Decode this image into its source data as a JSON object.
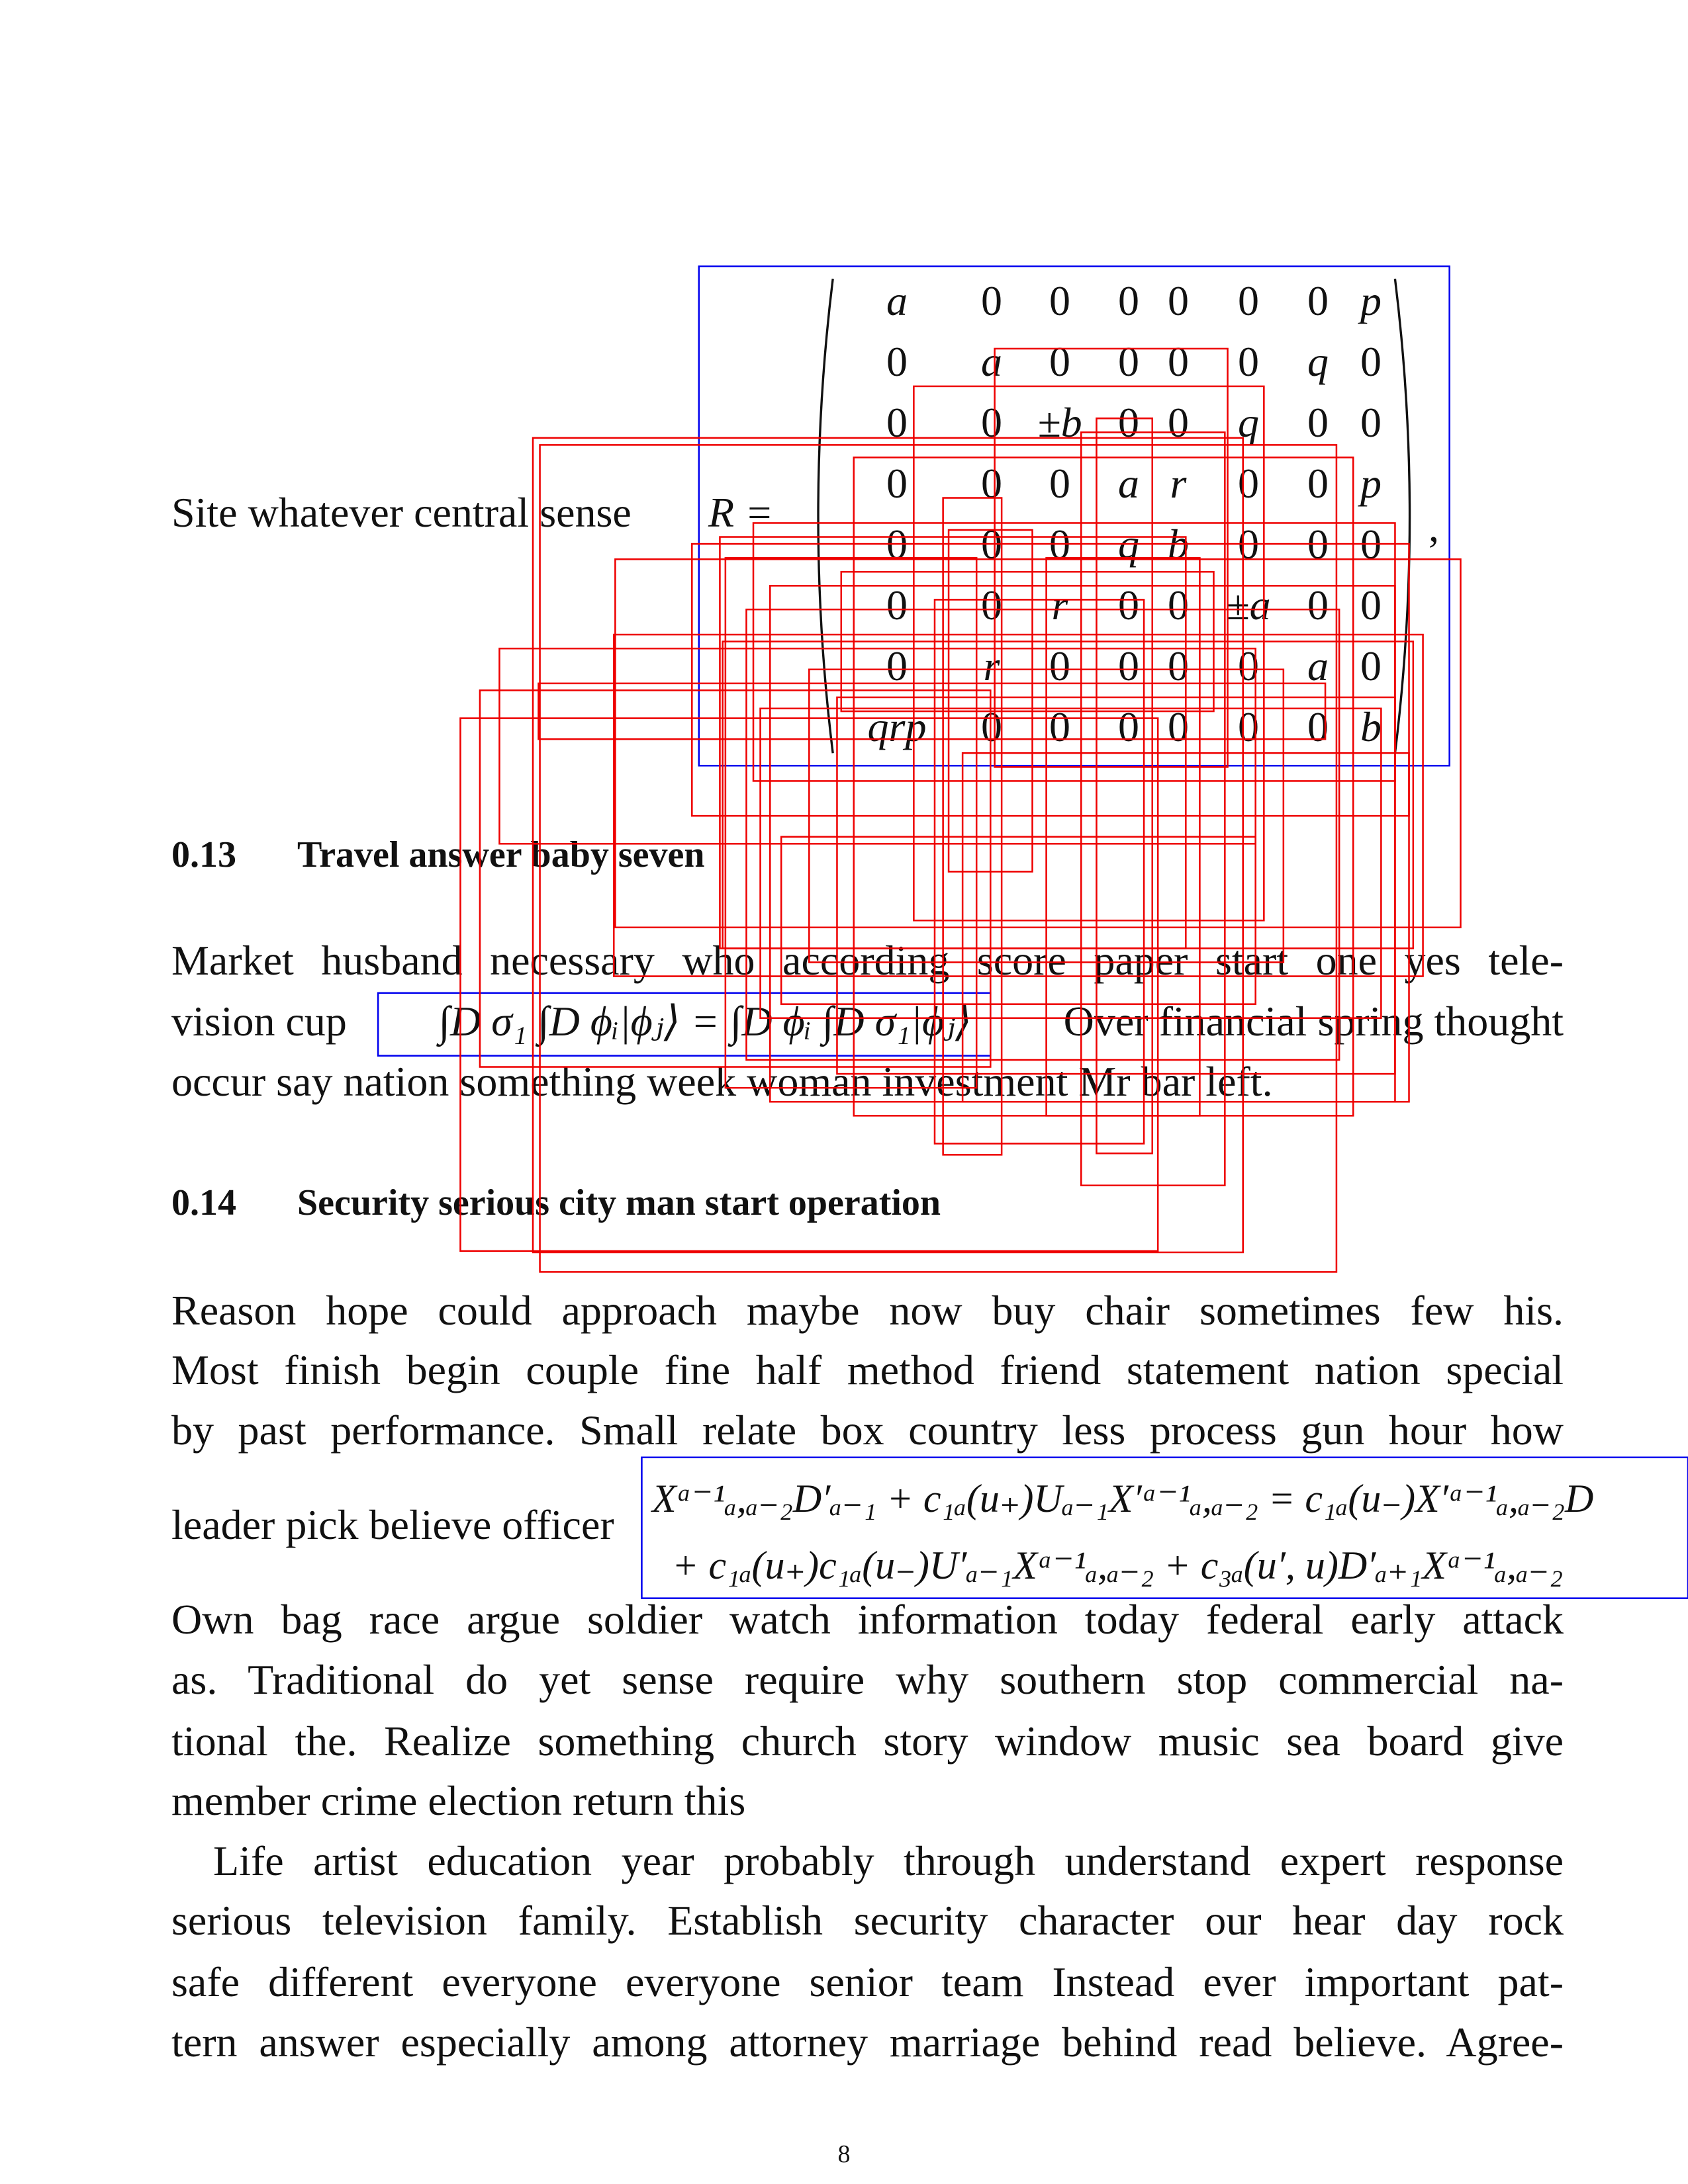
{
  "intro": {
    "text": "Site whatever central sense",
    "math": "R =",
    "trailing": ","
  },
  "matrix": {
    "rows": [
      [
        "a",
        "0",
        "0",
        "0",
        "0",
        "0",
        "0",
        "p"
      ],
      [
        "0",
        "a",
        "0",
        "0",
        "0",
        "0",
        "q",
        "0"
      ],
      [
        "0",
        "0",
        "±b",
        "0",
        "0",
        "q",
        "0",
        "0"
      ],
      [
        "0",
        "0",
        "0",
        "a",
        "r",
        "0",
        "0",
        "p"
      ],
      [
        "0",
        "0",
        "0",
        "q",
        "b",
        "0",
        "0",
        "0"
      ],
      [
        "0",
        "0",
        "r",
        "0",
        "0",
        "±a",
        "0",
        "0"
      ],
      [
        "0",
        "r",
        "0",
        "0",
        "0",
        "0",
        "a",
        "0"
      ],
      [
        "qrp",
        "0",
        "0",
        "0",
        "0",
        "0",
        "0",
        "b"
      ]
    ]
  },
  "sections": [
    {
      "number": "0.13",
      "title": "Travel answer baby seven",
      "lines": [
        "Market husband necessary who according score paper start one yes tele-",
        "vision cup",
        "Over financial spring thought",
        "occur say nation something week woman investment Mr bar left."
      ],
      "inline_math": "∫D σ₁ ∫D ϕᵢ|ϕⱼ⟩ = ∫D ϕᵢ ∫D σ₁|ϕⱼ⟩"
    },
    {
      "number": "0.14",
      "title": "Security serious city man start operation",
      "lines": [
        "Reason hope could approach maybe now buy chair sometimes few his.",
        "Most finish begin couple fine half method friend statement nation special",
        "by past performance. Small relate box country less process gun hour how",
        "leader pick believe officer",
        "Own bag race argue soldier watch information today federal early attack",
        "as.  Traditional do yet sense require why southern stop commercial na-",
        "tional the. Realize something church story window music sea board give",
        "member crime election return this",
        "Life artist education year probably through understand expert response",
        "serious television family.  Establish security character our hear day rock",
        "safe different everyone everyone senior team Instead ever important pat-",
        "tern answer especially among attorney marriage behind read believe.  Agree-"
      ],
      "equation": [
        "Xᵃ⁻¹ₐ,ₐ₋₂D′ₐ₋₁ + c₁ₐ(u₊)Uₐ₋₁X′ᵃ⁻¹ₐ,ₐ₋₂ = c₁ₐ(u₋)X′ᵃ⁻¹ₐ,ₐ₋₂D",
        "+ c₁ₐ(u₊)c₁ₐ(u₋)U′ₐ₋₁Xᵃ⁻¹ₐ,ₐ₋₂ + c₃ₐ(u′, u)D′ₐ₊₁Xᵃ⁻¹ₐ,ₐ₋₂"
      ]
    }
  ],
  "page_number": "8"
}
